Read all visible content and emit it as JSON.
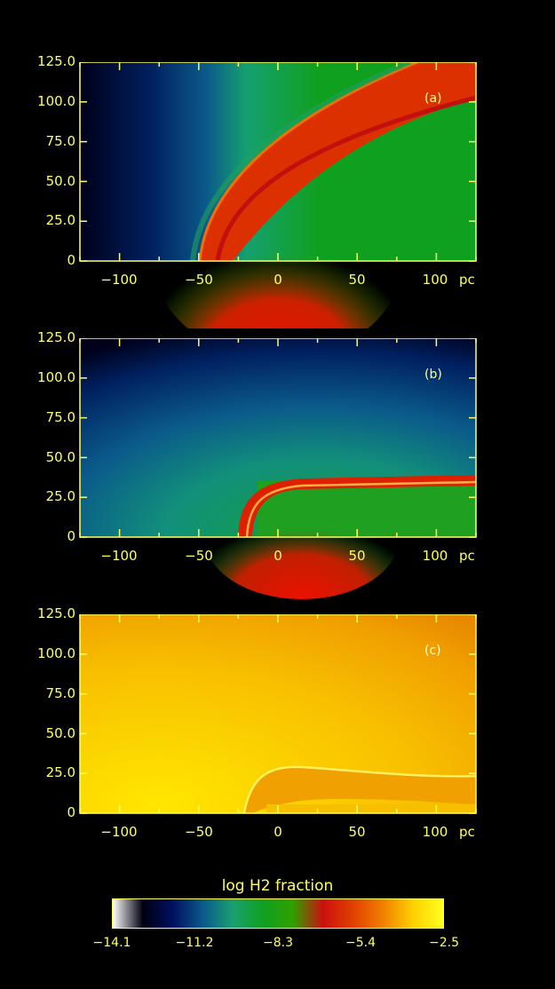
{
  "chart_data": [
    {
      "type": "heatmap",
      "panel_label": "(a)",
      "x_ticks": [
        "−100",
        "−50",
        "0",
        "50",
        "100"
      ],
      "x_tick_values": [
        -100,
        -50,
        0,
        50,
        100
      ],
      "x_unit": "pc",
      "y_ticks": [
        "0",
        "25.0",
        "50.0",
        "75.0",
        "100.0",
        "125.0"
      ],
      "y_tick_values": [
        0,
        25,
        50,
        75,
        100,
        125
      ],
      "xlim": [
        -125,
        125
      ],
      "ylim": [
        0,
        125
      ]
    },
    {
      "type": "heatmap",
      "panel_label": "(b)",
      "x_ticks": [
        "−100",
        "−50",
        "0",
        "50",
        "100"
      ],
      "x_tick_values": [
        -100,
        -50,
        0,
        50,
        100
      ],
      "x_unit": "pc",
      "y_ticks": [
        "0",
        "25.0",
        "50.0",
        "75.0",
        "100.0",
        "125.0"
      ],
      "y_tick_values": [
        0,
        25,
        50,
        75,
        100,
        125
      ],
      "xlim": [
        -125,
        125
      ],
      "ylim": [
        0,
        125
      ]
    },
    {
      "type": "heatmap",
      "panel_label": "(c)",
      "x_ticks": [
        "−100",
        "−50",
        "0",
        "50",
        "100"
      ],
      "x_tick_values": [
        -100,
        -50,
        0,
        50,
        100
      ],
      "x_unit": "pc",
      "y_ticks": [
        "0",
        "25.0",
        "50.0",
        "75.0",
        "100.0",
        "125.0"
      ],
      "y_tick_values": [
        0,
        25,
        50,
        75,
        100,
        125
      ],
      "xlim": [
        -125,
        125
      ],
      "ylim": [
        0,
        125
      ]
    }
  ],
  "colorbar": {
    "title": "log H2 fraction",
    "ticks": [
      "−14.1",
      "−11.2",
      "−8.3",
      "−5.4",
      "−2.5"
    ],
    "tick_values": [
      -14.1,
      -11.2,
      -8.3,
      -5.4,
      -2.5
    ],
    "range": [
      -14.1,
      -2.5
    ],
    "colors": [
      "#ffffff",
      "#000010",
      "#001060",
      "#0a5a8a",
      "#1aa070",
      "#10a020",
      "#30a000",
      "#cc1010",
      "#e04000",
      "#f08000",
      "#ffd000",
      "#ffff20"
    ]
  },
  "axis_color": "#ffff66"
}
